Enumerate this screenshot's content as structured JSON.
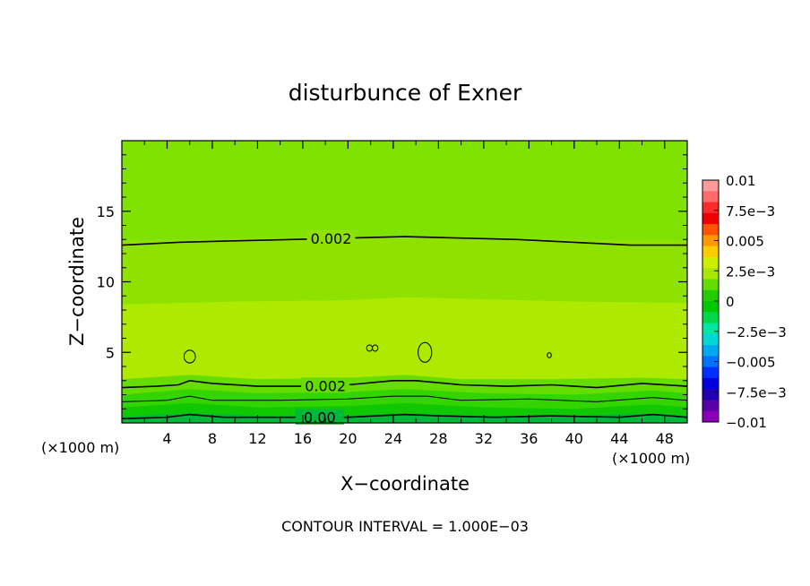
{
  "chart_data": {
    "type": "heatmap",
    "title": "disturbunce of Exner",
    "xlabel": "X−coordinate",
    "ylabel": "Z−coordinate",
    "x_unit_label": "(×1000 m)",
    "y_unit_label": "(×1000 m)",
    "footer": "CONTOUR INTERVAL = 1.000E−03",
    "xlim": [
      0,
      50
    ],
    "ylim": [
      0,
      20
    ],
    "x_ticks": [
      4,
      8,
      12,
      16,
      20,
      24,
      28,
      32,
      36,
      40,
      44,
      48
    ],
    "x_tick_labels": [
      "4",
      "8",
      "12",
      "16",
      "20",
      "24",
      "28",
      "32",
      "36",
      "40",
      "44",
      "48"
    ],
    "y_ticks": [
      5,
      10,
      15
    ],
    "y_tick_labels": [
      "5",
      "10",
      "15"
    ],
    "contour_levels": [
      {
        "value": 0.002,
        "label": "0.002",
        "z_profile": [
          [
            0,
            12.6
          ],
          [
            5,
            12.8
          ],
          [
            10,
            12.9
          ],
          [
            15,
            13.0
          ],
          [
            20,
            13.1
          ],
          [
            25,
            13.2
          ],
          [
            30,
            13.1
          ],
          [
            35,
            13.0
          ],
          [
            40,
            12.8
          ],
          [
            45,
            12.6
          ],
          [
            50,
            12.6
          ]
        ]
      },
      {
        "value": 0.002,
        "label": "0.002",
        "z_profile": [
          [
            0,
            2.5
          ],
          [
            3,
            2.6
          ],
          [
            5,
            2.7
          ],
          [
            6,
            3.0
          ],
          [
            8,
            2.8
          ],
          [
            12,
            2.6
          ],
          [
            16,
            2.6
          ],
          [
            20,
            2.7
          ],
          [
            24,
            3.0
          ],
          [
            26,
            3.0
          ],
          [
            30,
            2.7
          ],
          [
            34,
            2.6
          ],
          [
            38,
            2.7
          ],
          [
            42,
            2.5
          ],
          [
            46,
            2.8
          ],
          [
            50,
            2.6
          ]
        ]
      },
      {
        "value": 0.001,
        "label": "",
        "z_profile": [
          [
            0,
            1.5
          ],
          [
            4,
            1.6
          ],
          [
            6,
            1.9
          ],
          [
            8,
            1.6
          ],
          [
            14,
            1.6
          ],
          [
            20,
            1.7
          ],
          [
            24,
            1.9
          ],
          [
            27,
            1.9
          ],
          [
            30,
            1.6
          ],
          [
            36,
            1.7
          ],
          [
            42,
            1.5
          ],
          [
            47,
            1.8
          ],
          [
            50,
            1.6
          ]
        ]
      },
      {
        "value": 0.0,
        "label": "0.00",
        "z_profile": [
          [
            0,
            0.3
          ],
          [
            4,
            0.4
          ],
          [
            6,
            0.6
          ],
          [
            9,
            0.4
          ],
          [
            15,
            0.4
          ],
          [
            20,
            0.4
          ],
          [
            25,
            0.6
          ],
          [
            28,
            0.5
          ],
          [
            33,
            0.4
          ],
          [
            38,
            0.5
          ],
          [
            44,
            0.4
          ],
          [
            47,
            0.6
          ],
          [
            50,
            0.4
          ]
        ]
      }
    ],
    "closed_contours": [
      {
        "x": 6.0,
        "z": 4.7,
        "rx": 0.5,
        "rz": 0.45
      },
      {
        "x": 21.9,
        "z": 5.3,
        "rx": 0.25,
        "rz": 0.22
      },
      {
        "x": 22.4,
        "z": 5.3,
        "rx": 0.25,
        "rz": 0.22
      },
      {
        "x": 26.8,
        "z": 5.0,
        "rx": 0.6,
        "rz": 0.7
      },
      {
        "x": 37.8,
        "z": 4.8,
        "rx": 0.18,
        "rz": 0.18
      }
    ],
    "fill_bands": [
      {
        "z_profile": [
          [
            0,
            20
          ],
          [
            50,
            20
          ]
        ],
        "color": "#7fe200"
      },
      {
        "z_profile": [
          [
            0,
            12.9
          ],
          [
            10,
            13.1
          ],
          [
            20,
            13.2
          ],
          [
            30,
            13.2
          ],
          [
            40,
            13.0
          ],
          [
            50,
            12.9
          ]
        ],
        "color": "#8fe200"
      },
      {
        "z_profile": [
          [
            0,
            8.4
          ],
          [
            10,
            8.6
          ],
          [
            20,
            8.7
          ],
          [
            25,
            8.9
          ],
          [
            30,
            8.8
          ],
          [
            40,
            8.6
          ],
          [
            50,
            8.5
          ]
        ],
        "color": "#aeea00"
      },
      {
        "z_profile": [
          [
            0,
            3.1
          ],
          [
            6,
            3.4
          ],
          [
            12,
            3.1
          ],
          [
            20,
            3.2
          ],
          [
            25,
            3.4
          ],
          [
            30,
            3.1
          ],
          [
            38,
            3.1
          ],
          [
            46,
            3.2
          ],
          [
            50,
            3.1
          ]
        ],
        "color": "#66dd00"
      },
      {
        "z_profile": [
          [
            0,
            2.0
          ],
          [
            6,
            2.4
          ],
          [
            12,
            2.1
          ],
          [
            20,
            2.2
          ],
          [
            25,
            2.4
          ],
          [
            32,
            2.1
          ],
          [
            40,
            2.0
          ],
          [
            47,
            2.3
          ],
          [
            50,
            2.1
          ]
        ],
        "color": "#33d400"
      },
      {
        "z_profile": [
          [
            0,
            1.1
          ],
          [
            6,
            1.4
          ],
          [
            12,
            1.1
          ],
          [
            20,
            1.2
          ],
          [
            25,
            1.4
          ],
          [
            32,
            1.1
          ],
          [
            40,
            1.0
          ],
          [
            47,
            1.3
          ],
          [
            50,
            1.1
          ]
        ],
        "color": "#10c800"
      },
      {
        "z_profile": [
          [
            0,
            0.45
          ],
          [
            6,
            0.7
          ],
          [
            12,
            0.5
          ],
          [
            20,
            0.5
          ],
          [
            25,
            0.7
          ],
          [
            32,
            0.5
          ],
          [
            40,
            0.5
          ],
          [
            47,
            0.7
          ],
          [
            50,
            0.5
          ]
        ],
        "color": "#00b83a"
      }
    ],
    "colorbar": {
      "labels": [
        "0.01",
        "7.5e−3",
        "0.005",
        "2.5e−3",
        "0",
        "−2.5e−3",
        "−0.005",
        "−7.5e−3",
        "−0.01"
      ],
      "colors_top_to_bottom": [
        "#ff9a9a",
        "#ff6a6a",
        "#ff2a2a",
        "#ee0000",
        "#ff5500",
        "#ff9900",
        "#ffcc00",
        "#ccee00",
        "#a8e800",
        "#66dd00",
        "#22cc00",
        "#00c800",
        "#00d84a",
        "#00e8a0",
        "#00d8d8",
        "#00a8f0",
        "#0070ff",
        "#0030ff",
        "#0000dd",
        "#2000b0",
        "#5a00a8",
        "#8a00b8"
      ]
    }
  }
}
